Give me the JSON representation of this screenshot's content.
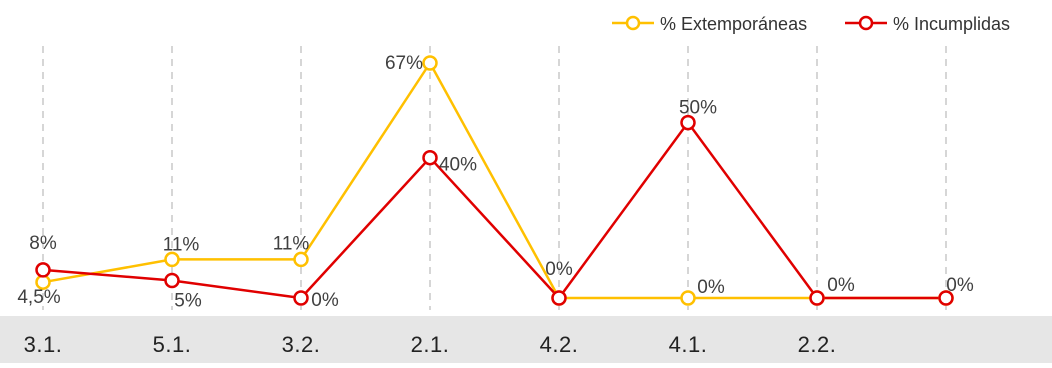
{
  "chart_data": {
    "type": "line",
    "categories": [
      "3.1.",
      "5.1.",
      "3.2.",
      "2.1.",
      "4.2.",
      "4.1.",
      "2.2.",
      ""
    ],
    "series": [
      {
        "name": "% Extemporáneas",
        "color": "#FFC000",
        "values": [
          4.5,
          11,
          11,
          67,
          0,
          0,
          0,
          0
        ],
        "labels": [
          "4,5%",
          "11%",
          "11%",
          "67%",
          "0%",
          "0%",
          "",
          ""
        ]
      },
      {
        "name": "% Incumplidas",
        "color": "#E00000",
        "values": [
          8,
          5,
          0,
          40,
          0,
          50,
          0,
          0
        ],
        "labels": [
          "8%",
          "5%",
          "0%",
          "40%",
          "",
          "50%",
          "0%",
          "0%"
        ]
      }
    ],
    "title": "",
    "xlabel": "",
    "ylabel": "",
    "ylim": [
      0,
      67
    ],
    "grid": "vertical-dashed",
    "legend": "top-right",
    "category_band_color": "#E6E6E6"
  }
}
